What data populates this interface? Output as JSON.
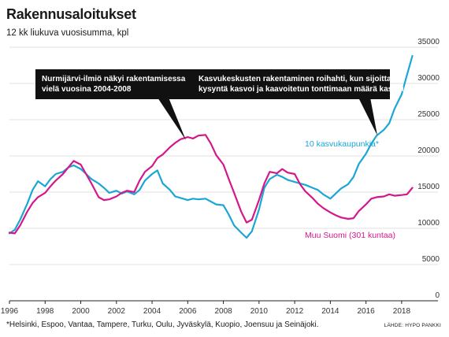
{
  "header": {
    "title": "Rakennusaloitukset",
    "subtitle": "12 kk liukuva vuosisumma, kpl"
  },
  "footer": {
    "footnote": "*Helsinki, Espoo, Vantaa, Tampere, Turku, Oulu, Jyväskylä, Kuopio, Joensuu ja Seinäjoki.",
    "source": "LÄHDE: HYPO PANKKI"
  },
  "annotations": [
    {
      "lines": [
        "Nurmijärvi-ilmiö näkyi rakentamisessa",
        "vielä vuosina 2004-2008"
      ]
    },
    {
      "lines": [
        "Kasvukeskusten rakentaminen roihahti, kun sijoittaja-",
        "kysyntä kasvoi ja kaavoitetun tonttimaan määrä kasvoi"
      ]
    }
  ],
  "colors": {
    "cities": "#1aa7d6",
    "rest": "#d4188a",
    "annotation_bg": "#111111"
  },
  "chart_data": {
    "type": "line",
    "title": "Rakennusaloitukset",
    "subtitle": "12 kk liukuva vuosisumma, kpl",
    "xlabel": "",
    "ylabel": "",
    "xlim": [
      1996,
      2018.8
    ],
    "ylim": [
      0,
      35000
    ],
    "x_ticks": [
      "1996",
      "1998",
      "2000",
      "2002",
      "2004",
      "2006",
      "2008",
      "2010",
      "2012",
      "2014",
      "2016",
      "2018"
    ],
    "y_ticks": [
      "0",
      "5000",
      "10000",
      "15000",
      "20000",
      "25000",
      "30000",
      "35000"
    ],
    "grid": true,
    "series": [
      {
        "name": "10 kasvukaupunkia*",
        "color": "#1aa7d6",
        "x": [
          1996.0,
          1996.3,
          1996.6,
          1997.0,
          1997.3,
          1997.6,
          1998.0,
          1998.3,
          1998.6,
          1999.0,
          1999.3,
          1999.6,
          2000.0,
          2000.3,
          2000.6,
          2001.0,
          2001.3,
          2001.6,
          2002.0,
          2002.3,
          2002.6,
          2003.0,
          2003.3,
          2003.6,
          2004.0,
          2004.3,
          2004.6,
          2005.0,
          2005.3,
          2005.6,
          2006.0,
          2006.3,
          2006.6,
          2007.0,
          2007.3,
          2007.6,
          2008.0,
          2008.3,
          2008.6,
          2009.0,
          2009.3,
          2009.6,
          2010.0,
          2010.3,
          2010.6,
          2011.0,
          2011.3,
          2011.6,
          2012.0,
          2012.3,
          2012.6,
          2013.0,
          2013.3,
          2013.6,
          2014.0,
          2014.3,
          2014.6,
          2015.0,
          2015.3,
          2015.6,
          2016.0,
          2016.3,
          2016.6,
          2017.0,
          2017.3,
          2017.6,
          2018.0,
          2018.3,
          2018.6
        ],
        "y": [
          9300,
          9800,
          11200,
          13400,
          15300,
          16500,
          15800,
          16800,
          17500,
          17800,
          18400,
          18700,
          18200,
          17500,
          16800,
          16200,
          15600,
          14900,
          15200,
          14800,
          15100,
          14700,
          15300,
          16600,
          17500,
          18000,
          16200,
          15300,
          14400,
          14200,
          13900,
          14100,
          14000,
          14100,
          13700,
          13300,
          13200,
          11900,
          10400,
          9400,
          8700,
          9600,
          12600,
          15600,
          16800,
          17400,
          17100,
          16700,
          16400,
          16200,
          16000,
          15600,
          15300,
          14700,
          14100,
          14800,
          15500,
          16100,
          17100,
          18900,
          20300,
          21700,
          22800,
          23600,
          24500,
          26500,
          28500,
          31200,
          33800
        ]
      },
      {
        "name": "Muu Suomi (301 kuntaa)",
        "color": "#d4188a",
        "x": [
          1996.0,
          1996.3,
          1996.6,
          1997.0,
          1997.3,
          1997.6,
          1998.0,
          1998.3,
          1998.6,
          1999.0,
          1999.3,
          1999.6,
          2000.0,
          2000.3,
          2000.6,
          2001.0,
          2001.3,
          2001.6,
          2002.0,
          2002.3,
          2002.6,
          2003.0,
          2003.3,
          2003.6,
          2004.0,
          2004.3,
          2004.6,
          2005.0,
          2005.3,
          2005.6,
          2006.0,
          2006.3,
          2006.6,
          2007.0,
          2007.3,
          2007.6,
          2008.0,
          2008.3,
          2008.6,
          2009.0,
          2009.3,
          2009.6,
          2010.0,
          2010.3,
          2010.6,
          2011.0,
          2011.3,
          2011.6,
          2012.0,
          2012.3,
          2012.6,
          2013.0,
          2013.3,
          2013.6,
          2014.0,
          2014.3,
          2014.6,
          2015.0,
          2015.3,
          2015.6,
          2016.0,
          2016.3,
          2016.6,
          2017.0,
          2017.3,
          2017.6,
          2018.0,
          2018.3,
          2018.6
        ],
        "y": [
          9400,
          9300,
          10400,
          12300,
          13500,
          14300,
          14900,
          15800,
          16600,
          17500,
          18400,
          19300,
          18800,
          17500,
          16200,
          14300,
          13900,
          14000,
          14400,
          14900,
          15200,
          15000,
          16600,
          17800,
          18600,
          19700,
          20200,
          21200,
          21800,
          22300,
          22600,
          22400,
          22800,
          22900,
          21700,
          20100,
          18800,
          16800,
          14900,
          12300,
          10800,
          11200,
          13900,
          16200,
          17800,
          17600,
          18200,
          17700,
          17500,
          16100,
          15100,
          14200,
          13400,
          12800,
          12200,
          11800,
          11500,
          11300,
          11400,
          12400,
          13300,
          14100,
          14300,
          14400,
          14700,
          14500,
          14600,
          14700,
          15600
        ]
      }
    ]
  }
}
